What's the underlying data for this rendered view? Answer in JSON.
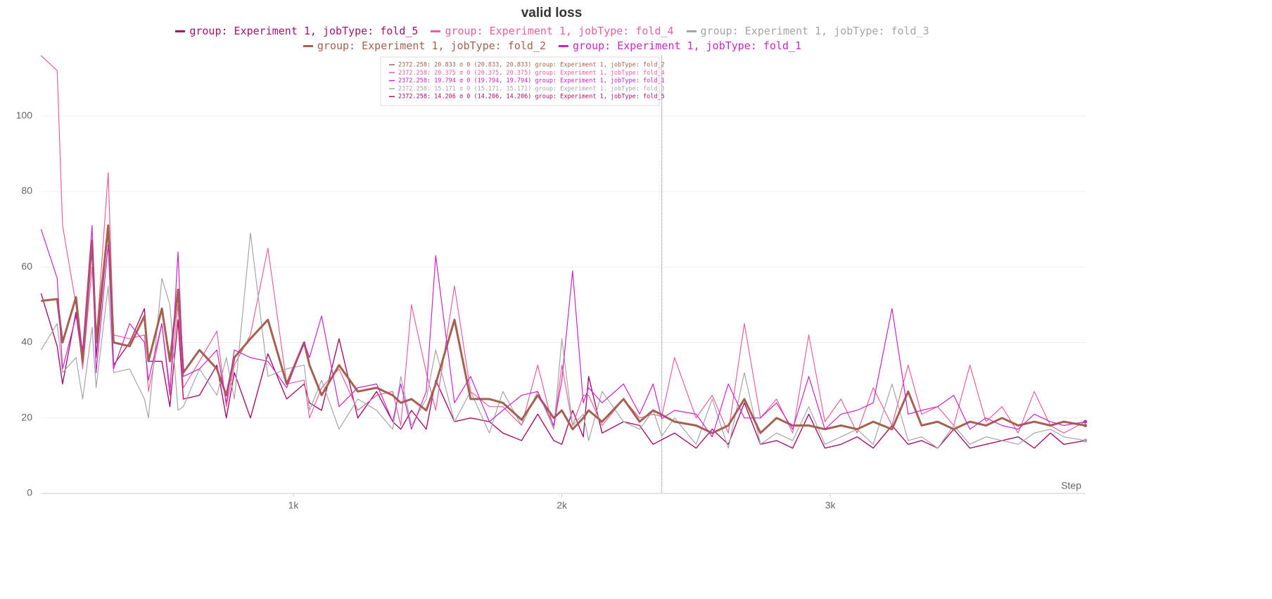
{
  "chart_data": {
    "type": "line",
    "title": "valid loss",
    "xlabel": "Step",
    "x": [
      60,
      120,
      140,
      190,
      215,
      250,
      265,
      310,
      330,
      390,
      445,
      460,
      510,
      540,
      570,
      590,
      650,
      715,
      750,
      780,
      840,
      905,
      975,
      1040,
      1060,
      1105,
      1170,
      1240,
      1310,
      1370,
      1400,
      1440,
      1495,
      1530,
      1600,
      1660,
      1730,
      1780,
      1850,
      1910,
      1970,
      2000,
      2040,
      2080,
      2100,
      2150,
      2230,
      2290,
      2340,
      2372.258,
      2420,
      2500,
      2560,
      2620,
      2680,
      2740,
      2800,
      2860,
      2920,
      2980,
      3040,
      3100,
      3160,
      3230,
      3290,
      3340,
      3400,
      3460,
      3520,
      3580,
      3640,
      3700,
      3760,
      3820,
      3870,
      3950
    ],
    "series": [
      {
        "name": "group: Experiment 1, jobType: fold_5",
        "color": "#a6106a",
        "width": 1.4,
        "values": [
          53,
          39,
          29,
          48,
          34,
          67,
          36,
          70,
          34,
          40,
          49,
          35,
          35,
          23,
          46,
          25,
          26,
          34,
          20,
          32,
          20,
          37,
          25,
          29,
          24,
          22,
          41,
          20,
          27,
          19,
          17,
          22,
          17,
          30,
          19,
          20,
          19,
          16,
          14,
          21,
          14,
          13,
          22,
          15,
          31,
          16,
          19,
          18,
          13,
          14.206,
          16,
          12,
          17,
          13,
          24,
          13,
          14,
          12,
          21,
          12,
          13,
          15,
          12,
          18,
          13,
          14,
          12,
          17,
          12,
          13,
          14,
          15,
          12,
          16,
          13,
          14
        ]
      },
      {
        "name": "group: Experiment 1, jobType: fold_4",
        "color": "#ea5f9b",
        "width": 1.2,
        "values": [
          116,
          112,
          71,
          50,
          33,
          60,
          40,
          85,
          42,
          41,
          42,
          27,
          45,
          28,
          50,
          28,
          35,
          43,
          23,
          34,
          42,
          65,
          29,
          30,
          20,
          28,
          33,
          22,
          26,
          27,
          18,
          50,
          32,
          22,
          55,
          27,
          23,
          23,
          18,
          34,
          17,
          34,
          18,
          26,
          26,
          18,
          25,
          20,
          21,
          20.375,
          36,
          20,
          26,
          16,
          45,
          20,
          25,
          16,
          42,
          19,
          25,
          16,
          28,
          18,
          34,
          21,
          23,
          18,
          34,
          19,
          23,
          16,
          27,
          18,
          16,
          19
        ]
      },
      {
        "name": "group: Experiment 1, jobType: fold_3",
        "color": "#a5a5a8",
        "width": 1.2,
        "values": [
          38,
          45,
          32,
          36,
          25,
          44,
          28,
          55,
          32,
          33,
          25,
          20,
          57,
          50,
          22,
          23,
          33,
          26,
          36,
          25,
          69,
          31,
          33,
          34,
          22,
          30,
          17,
          25,
          22,
          17,
          31,
          18,
          25,
          38,
          19,
          27,
          16,
          27,
          18,
          27,
          17,
          41,
          18,
          21,
          14,
          27,
          19,
          17,
          22,
          15.171,
          20,
          13,
          25,
          12,
          32,
          13,
          16,
          14,
          23,
          13,
          15,
          17,
          13,
          29,
          14,
          15,
          12,
          18,
          13,
          15,
          14,
          13,
          16,
          17,
          15,
          14
        ]
      },
      {
        "name": "group: Experiment 1, jobType: fold_2",
        "color": "#a5604f",
        "width": 3,
        "values": [
          51,
          51.5,
          40,
          52,
          35,
          67,
          40,
          71,
          40,
          39,
          47,
          35,
          49,
          35,
          54,
          32,
          38,
          33,
          26,
          36,
          41,
          46,
          29,
          40,
          34,
          26,
          34,
          27,
          28,
          26,
          24,
          25,
          22,
          29,
          46,
          25,
          25,
          24,
          19.5,
          26,
          20,
          22,
          17,
          20,
          22,
          19,
          25,
          19,
          22,
          20.833,
          19,
          18,
          16,
          18,
          25,
          16,
          20,
          18,
          18,
          17,
          18,
          17,
          19,
          17,
          27,
          18,
          19,
          17,
          19,
          18,
          20,
          18,
          19,
          18,
          19,
          18
        ]
      },
      {
        "name": "group: Experiment 1, jobType: fold_1",
        "color": "#c725c7",
        "width": 1.2,
        "values": [
          70,
          57,
          33,
          47,
          38,
          71,
          32,
          66,
          33,
          45,
          40,
          30,
          45,
          26,
          64,
          31,
          33,
          38,
          24,
          38,
          36,
          35,
          28,
          40,
          36,
          47,
          23,
          28,
          29,
          19,
          29,
          17,
          27,
          63,
          24,
          31,
          19,
          22,
          26,
          27,
          18,
          30,
          59,
          24,
          28,
          24,
          29,
          21,
          29,
          19.794,
          22,
          21,
          15,
          29,
          20,
          20,
          24,
          17,
          31,
          17,
          21,
          22,
          24,
          49,
          21,
          22,
          23,
          26,
          17,
          20,
          18,
          17,
          21,
          19,
          18,
          19
        ]
      }
    ],
    "xlim": [
      59,
      3951
    ],
    "ylim": [
      0,
      116
    ],
    "xticks": [
      {
        "value": 1000,
        "label": "1k"
      },
      {
        "value": 2000,
        "label": "2k"
      },
      {
        "value": 3000,
        "label": "3k"
      }
    ],
    "yticks": [
      0,
      20,
      40,
      60,
      80,
      100
    ],
    "grid": true,
    "hover_step": 2372.258,
    "tooltip": [
      {
        "text": "2372.258: 20.833 σ 0 (20.833, 20.833) group: Experiment 1, jobType: fold_2",
        "color": "#a5604f"
      },
      {
        "text": "2372.258: 20.375 σ 0 (20.375, 20.375) group: Experiment 1, jobType: fold_4",
        "color": "#ea5f9b"
      },
      {
        "text": "2372.258: 19.794 σ 0 (19.794, 19.794) group: Experiment 1, jobType: fold_1",
        "color": "#c725c7"
      },
      {
        "text": "2372.258: 15.171 σ 0 (15.171, 15.171) group: Experiment 1, jobType: fold_3",
        "color": "#a5a5a8"
      },
      {
        "text": "2372.258: 14.206 σ 0 (14.206, 14.206) group: Experiment 1, jobType: fold_5",
        "color": "#a6106a"
      }
    ]
  }
}
